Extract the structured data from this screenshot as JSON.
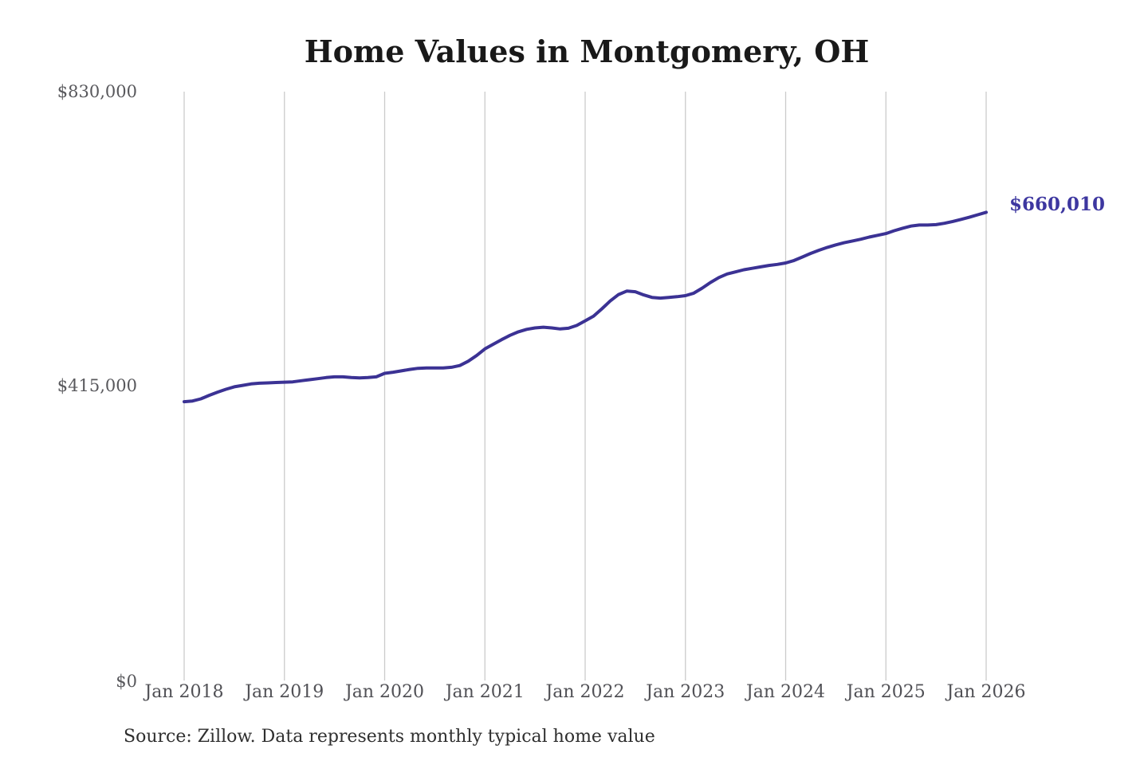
{
  "chart": {
    "title": "Home Values in Montgomery, OH",
    "source_note": "Source: Zillow. Data represents monthly typical home value",
    "colors": {
      "line": "#3b3294",
      "grid": "#cbcbcb",
      "title": "#191919",
      "axis_label": "#58585c",
      "annotation": "#3d37a0",
      "source": "#2f2f2f",
      "background": "#ffffff"
    }
  },
  "chart_data": {
    "type": "line",
    "title": "Home Values in Montgomery, OH",
    "xlabel": "",
    "ylabel": "",
    "ylim": [
      0,
      830000
    ],
    "grid": "vertical-only",
    "legend": "none",
    "x_tick_labels": [
      "Jan 2018",
      "Jan 2019",
      "Jan 2020",
      "Jan 2021",
      "Jan 2022",
      "Jan 2023",
      "Jan 2024",
      "Jan 2025",
      "Jan 2026"
    ],
    "y_ticks": [
      {
        "label": "$830,000",
        "value": 830000
      },
      {
        "label": "$415,000",
        "value": 415000
      },
      {
        "label": "$0",
        "value": 0
      }
    ],
    "final_label": "$660,010",
    "final_value": 660010,
    "series": [
      {
        "name": "Monthly typical home value",
        "start_month": "2018-01",
        "interval": "monthly",
        "values": [
          393000,
          394000,
          397000,
          402000,
          406500,
          410500,
          414000,
          416000,
          418000,
          419000,
          419500,
          420000,
          420500,
          421000,
          422500,
          424000,
          425500,
          427000,
          428000,
          428000,
          427000,
          426500,
          427000,
          428000,
          433000,
          434500,
          436500,
          438500,
          440000,
          440500,
          440500,
          440500,
          441500,
          444000,
          450000,
          458000,
          467500,
          474000,
          480500,
          486500,
          491500,
          495000,
          497000,
          498000,
          497000,
          495500,
          496500,
          500500,
          507000,
          513500,
          524000,
          535000,
          544000,
          549000,
          548000,
          543500,
          540000,
          539000,
          540000,
          541000,
          542500,
          546000,
          553000,
          561000,
          568000,
          573000,
          576000,
          579000,
          581000,
          583000,
          585000,
          586500,
          588500,
          592000,
          597000,
          602000,
          606500,
          610500,
          614000,
          617000,
          619500,
          622000,
          625000,
          627500,
          630000,
          634000,
          637500,
          640500,
          642000,
          642000,
          642500,
          644500,
          647000,
          650000,
          653000,
          656500,
          660010
        ]
      }
    ]
  }
}
